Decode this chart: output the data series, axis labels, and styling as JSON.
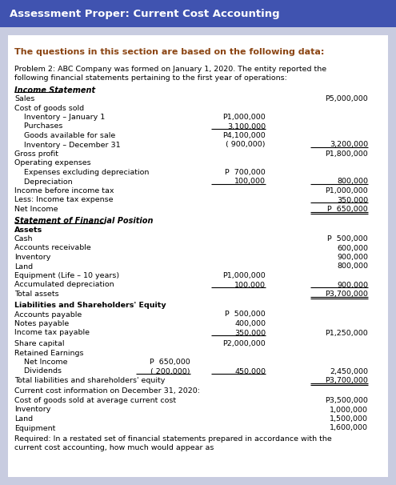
{
  "title": "Assessment Proper: Current Cost Accounting",
  "title_bg": "#4053b0",
  "title_fg": "#ffffff",
  "subtitle": "The questions in this section are based on the following data:",
  "subtitle_color": "#8B4513",
  "bg_color": "#c8cce0",
  "content_bg": "#ffffff",
  "body_color": "#000000",
  "lines": [
    {
      "text": "Problem 2: ABC Company was formed on January 1, 2020. The entity reported the",
      "indent": 0,
      "style": "normal",
      "size": 6.8
    },
    {
      "text": "following financial statements pertaining to the first year of operations:",
      "indent": 0,
      "style": "normal",
      "size": 6.8
    },
    {
      "text": "",
      "size": 5
    },
    {
      "text": "Income Statement",
      "indent": 0,
      "style": "bold_italic_underline",
      "size": 7.0
    },
    {
      "text": "Sales",
      "indent": 0,
      "style": "normal",
      "size": 6.8,
      "col3": "P5,000,000"
    },
    {
      "text": "Cost of goods sold",
      "indent": 0,
      "style": "normal",
      "size": 6.8
    },
    {
      "text": "    Inventory – January 1",
      "indent": 10,
      "style": "normal",
      "size": 6.8,
      "col2": "P1,000,000"
    },
    {
      "text": "    Purchases",
      "indent": 10,
      "style": "normal",
      "size": 6.8,
      "col2": "3,100,000",
      "ul2": true
    },
    {
      "text": "    Goods available for sale",
      "indent": 10,
      "style": "normal",
      "size": 6.8,
      "col2": "P4,100,000"
    },
    {
      "text": "    Inventory – December 31",
      "indent": 10,
      "style": "normal",
      "size": 6.8,
      "col2": "( 900,000)",
      "col3": "3,200,000",
      "ul3": true
    },
    {
      "text": "Gross profit",
      "indent": 0,
      "style": "normal",
      "size": 6.8,
      "col3": "P1,800,000"
    },
    {
      "text": "Operating expenses",
      "indent": 0,
      "style": "normal",
      "size": 6.8
    },
    {
      "text": "    Expenses excluding depreciation",
      "indent": 10,
      "style": "normal",
      "size": 6.8,
      "col2": "P  700,000"
    },
    {
      "text": "    Depreciation",
      "indent": 10,
      "style": "normal",
      "size": 6.8,
      "col2": "100,000",
      "ul2": true,
      "col3": "800,000",
      "ul3": true
    },
    {
      "text": "Income before income tax",
      "indent": 0,
      "style": "normal",
      "size": 6.8,
      "col3": "P1,000,000"
    },
    {
      "text": "Less: Income tax expense",
      "indent": 0,
      "style": "normal",
      "size": 6.8,
      "col3": "350,000",
      "ul3": true
    },
    {
      "text": "Net Income",
      "indent": 0,
      "style": "normal",
      "size": 6.8,
      "col3": "P  650,000",
      "dul3": true
    },
    {
      "text": "",
      "size": 5
    },
    {
      "text": "Statement of Financial Position",
      "indent": 0,
      "style": "bold_italic_underline",
      "size": 7.0
    },
    {
      "text": "Assets",
      "indent": 0,
      "style": "bold",
      "size": 6.8
    },
    {
      "text": "Cash",
      "indent": 0,
      "style": "normal",
      "size": 6.8,
      "col3": "P  500,000"
    },
    {
      "text": "Accounts receivable",
      "indent": 0,
      "style": "normal",
      "size": 6.8,
      "col3": "600,000"
    },
    {
      "text": "Inventory",
      "indent": 0,
      "style": "normal",
      "size": 6.8,
      "col3": "900,000"
    },
    {
      "text": "Land",
      "indent": 0,
      "style": "normal",
      "size": 6.8,
      "col3": "800,000"
    },
    {
      "text": "Equipment (Life – 10 years)",
      "indent": 0,
      "style": "normal",
      "size": 6.8,
      "col2": "P1,000,000"
    },
    {
      "text": "Accumulated depreciation",
      "indent": 0,
      "style": "normal",
      "size": 6.8,
      "col2": "100,000",
      "ul2": true,
      "col3": "900,000",
      "ul3": true
    },
    {
      "text": "Total assets",
      "indent": 0,
      "style": "normal",
      "size": 6.8,
      "col3": "P3,700,000",
      "dul3": true
    },
    {
      "text": "",
      "size": 5
    },
    {
      "text": "Liabilities and Shareholders' Equity",
      "indent": 0,
      "style": "bold",
      "size": 6.8
    },
    {
      "text": "Accounts payable",
      "indent": 0,
      "style": "normal",
      "size": 6.8,
      "col2": "P  500,000"
    },
    {
      "text": "Notes payable",
      "indent": 0,
      "style": "normal",
      "size": 6.8,
      "col2": "400,000"
    },
    {
      "text": "Income tax payable",
      "indent": 0,
      "style": "normal",
      "size": 6.8,
      "col2": "350,000",
      "ul2": true,
      "col3": "P1,250,000"
    },
    {
      "text": "",
      "size": 4
    },
    {
      "text": "Share capital",
      "indent": 0,
      "style": "normal",
      "size": 6.8,
      "col2": "P2,000,000"
    },
    {
      "text": "Retained Earnings",
      "indent": 0,
      "style": "normal",
      "size": 6.8
    },
    {
      "text": "    Net Income",
      "indent": 10,
      "style": "normal",
      "size": 6.8,
      "col1": "P  650,000"
    },
    {
      "text": "    Dividends",
      "indent": 10,
      "style": "normal",
      "size": 6.8,
      "col1": "( 200,000)",
      "ul1": true,
      "col2": "450,000",
      "ul2": true,
      "col3": "2,450,000"
    },
    {
      "text": "Total liabilities and shareholders' equity",
      "indent": 0,
      "style": "normal",
      "size": 6.8,
      "col3": "P3,700,000",
      "dul3": true
    },
    {
      "text": "",
      "size": 4
    },
    {
      "text": "Current cost information on December 31, 2020:",
      "indent": 0,
      "style": "normal",
      "size": 6.8
    },
    {
      "text": "Cost of goods sold at average current cost",
      "indent": 0,
      "style": "normal",
      "size": 6.8,
      "col3": "P3,500,000"
    },
    {
      "text": "Inventory",
      "indent": 0,
      "style": "normal",
      "size": 6.8,
      "col3": "1,000,000"
    },
    {
      "text": "Land",
      "indent": 0,
      "style": "normal",
      "size": 6.8,
      "col3": "1,500,000"
    },
    {
      "text": "Equipment",
      "indent": 0,
      "style": "normal",
      "size": 6.8,
      "col3": "1,600,000"
    },
    {
      "text": "",
      "size": 4
    },
    {
      "text": "Required: In a restated set of financial statements prepared in accordance with the",
      "indent": 0,
      "style": "normal",
      "size": 6.8
    },
    {
      "text": "current cost accounting, how much would appear as",
      "indent": 0,
      "style": "normal",
      "size": 6.8
    }
  ]
}
